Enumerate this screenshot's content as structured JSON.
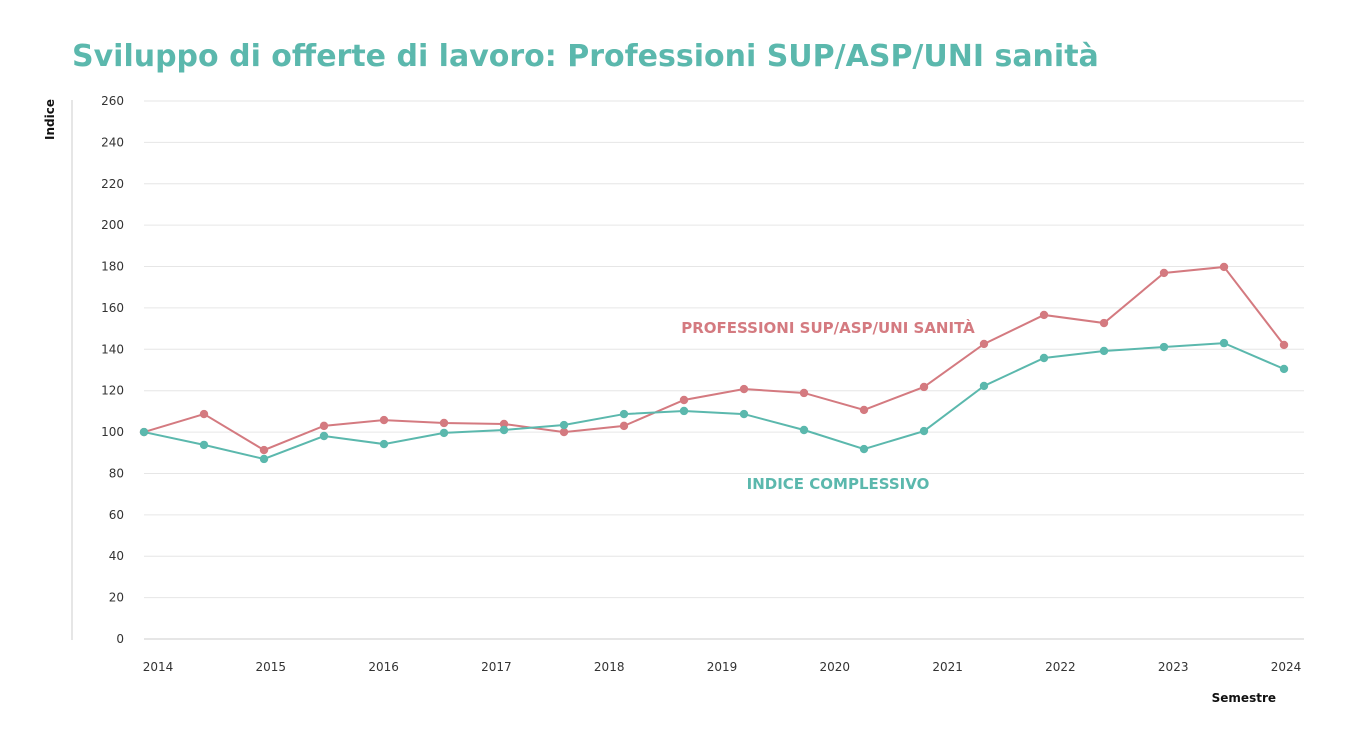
{
  "chart_data": {
    "type": "line",
    "title": "Sviluppo di offerte di lavoro: Professioni SUP/ASP/UNI sanità",
    "xlabel": "Semestre",
    "ylabel": "Indice",
    "ylim": [
      0,
      260
    ],
    "yticks": [
      "0",
      "20",
      "40",
      "60",
      "80",
      "100",
      "120",
      "140",
      "160",
      "180",
      "200",
      "220",
      "240",
      "260"
    ],
    "xticks": [
      "2014",
      "2015",
      "2016",
      "2017",
      "2018",
      "2019",
      "2020",
      "2021",
      "2022",
      "2023",
      "2024"
    ],
    "grid": true,
    "series": [
      {
        "name": "PROFESSIONI SUP/ASP/UNI SANITÀ",
        "color": "#d47a80",
        "values": [
          100,
          108.7,
          91.3,
          103,
          105.8,
          104.4,
          103.9,
          100,
          103,
          115.5,
          120.8,
          118.9,
          110.7,
          121.8,
          142.6,
          156.6,
          152.7,
          176.9,
          179.8,
          142.1
        ]
      },
      {
        "name": "INDICE COMPLESSIVO",
        "color": "#5bb8ad",
        "values": [
          100,
          93.8,
          87,
          98.1,
          94.2,
          99.6,
          101,
          103.4,
          108.7,
          110.2,
          108.7,
          101,
          91.8,
          100.5,
          122.3,
          135.8,
          139.2,
          141.1,
          143,
          130.5
        ]
      }
    ]
  }
}
